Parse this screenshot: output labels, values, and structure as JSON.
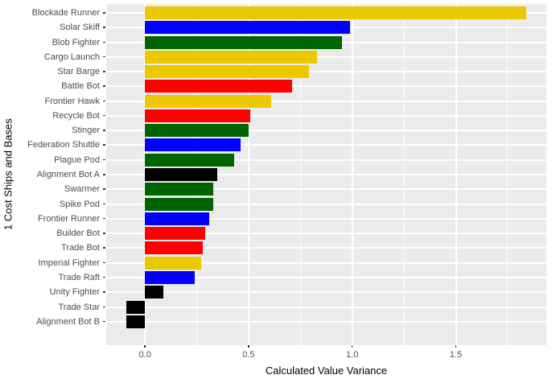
{
  "chart_data": {
    "type": "bar",
    "orientation": "horizontal",
    "title": "",
    "xlabel": "Calculated Value Variance",
    "ylabel": "1 Cost Ships and Bases",
    "xlim": [
      -0.187,
      1.937
    ],
    "x_ticks": [
      0.0,
      0.5,
      1.0,
      1.5
    ],
    "x_tick_labels": [
      "0.0",
      "0.5",
      "1.0",
      "1.5"
    ],
    "x_minor_gridlines": [
      0.25,
      0.75,
      1.25,
      1.75
    ],
    "grid": "on",
    "legend": "none",
    "categories": [
      "Blockade Runner",
      "Solar Skiff",
      "Blob Fighter",
      "Cargo Launch",
      "Star Barge",
      "Battle Bot",
      "Frontier Hawk",
      "Recycle Bot",
      "Stinger",
      "Federation Shuttle",
      "Plague Pod",
      "Alignment Bot A",
      "Swarmer",
      "Spike Pod",
      "Frontier Runner",
      "Builder Bot",
      "Trade Bot",
      "Imperial Fighter",
      "Trade Raft",
      "Unity Fighter",
      "Trade Star",
      "Alignment Bot B"
    ],
    "values": [
      1.84,
      0.99,
      0.95,
      0.83,
      0.79,
      0.71,
      0.61,
      0.51,
      0.5,
      0.46,
      0.43,
      0.35,
      0.33,
      0.33,
      0.31,
      0.29,
      0.28,
      0.27,
      0.24,
      0.09,
      -0.09,
      -0.09
    ],
    "bar_color_names": [
      "gold",
      "blue",
      "green",
      "gold",
      "gold",
      "red",
      "gold",
      "red",
      "green",
      "blue",
      "green",
      "black",
      "green",
      "green",
      "blue",
      "red",
      "red",
      "gold",
      "blue",
      "black",
      "black",
      "black"
    ],
    "palette": {
      "gold": "#ECC800",
      "blue": "#0000FF",
      "green": "#006400",
      "red": "#FF0000",
      "black": "#000000"
    }
  },
  "style": {
    "background": "#FFFFFF",
    "panel_bg": "#EBEBEB",
    "grid_color": "#FFFFFF",
    "axis_text_color": "#4D4D4D",
    "axis_title_color": "#000000",
    "tick_mark_color": "#333333"
  }
}
